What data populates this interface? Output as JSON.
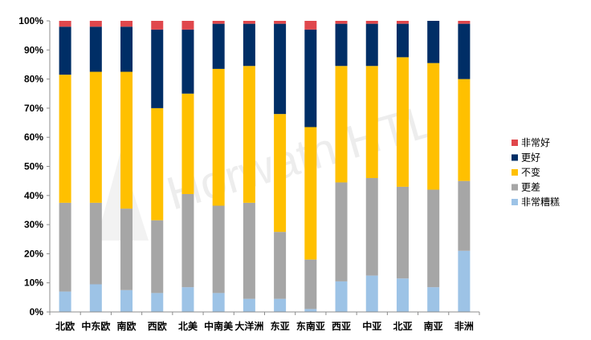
{
  "chart_data": {
    "type": "bar",
    "stacked": true,
    "percent": true,
    "categories": [
      "北欧",
      "中东欧",
      "南欧",
      "西欧",
      "北美",
      "中南美",
      "大洋洲",
      "东亚",
      "东南亚",
      "西亚",
      "中亚",
      "北亚",
      "南亚",
      "非洲"
    ],
    "series": [
      {
        "name": "非常糟糕",
        "color": "#9dc3e6",
        "values": [
          7,
          9.5,
          7.5,
          6.5,
          8.5,
          6.5,
          4.5,
          4.5,
          1,
          10.5,
          12.5,
          11.5,
          8.5,
          21
        ]
      },
      {
        "name": "更差",
        "color": "#a6a6a6",
        "values": [
          30.5,
          28,
          28,
          25,
          32,
          30,
          33,
          23,
          17,
          34,
          33.5,
          31.5,
          33.5,
          24
        ]
      },
      {
        "name": "不变",
        "color": "#ffc000",
        "values": [
          44,
          45,
          47,
          38.5,
          34.5,
          47,
          47,
          40.5,
          45.5,
          40,
          38.5,
          44.5,
          43.5,
          35
        ]
      },
      {
        "name": "更好",
        "color": "#002e66",
        "values": [
          16.5,
          15.5,
          15.5,
          27,
          22,
          15.5,
          14.5,
          31,
          33.5,
          14.5,
          14.5,
          11.5,
          14.5,
          19
        ]
      },
      {
        "name": "非常好",
        "color": "#e0474c",
        "values": [
          2,
          2,
          2,
          3,
          3,
          1,
          1,
          1,
          3,
          1,
          1,
          1,
          0,
          1
        ]
      }
    ],
    "y_ticks": [
      "0%",
      "10%",
      "20%",
      "30%",
      "40%",
      "50%",
      "60%",
      "70%",
      "80%",
      "90%",
      "100%"
    ],
    "ylim": [
      0,
      100
    ],
    "legend_position": "right",
    "legend_order": [
      "非常好",
      "更好",
      "不变",
      "更差",
      "非常糟糕"
    ],
    "grid": false,
    "watermark": "Horwath HTL",
    "title": "",
    "xlabel": "",
    "ylabel": ""
  }
}
